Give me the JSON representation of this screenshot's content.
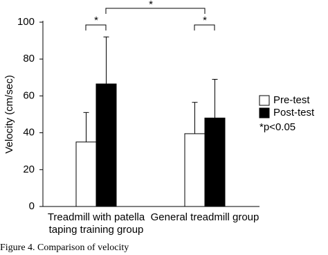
{
  "chart_data": {
    "type": "bar",
    "ylabel": "Velocity (cm/sec)",
    "categories": [
      "Treadmill with patella taping training group",
      "General treadmill group"
    ],
    "series": [
      {
        "name": "Pre-test",
        "color": "#ffffff",
        "values": [
          35,
          39.5
        ],
        "errors": [
          16,
          17
        ]
      },
      {
        "name": "Post-test",
        "color": "#000000",
        "values": [
          66.5,
          48
        ],
        "errors": [
          25.5,
          21
        ]
      }
    ],
    "ylim": [
      0,
      100
    ],
    "yticks": [
      0,
      20,
      40,
      60,
      80,
      100
    ],
    "annotations": [
      "*",
      "*",
      "*"
    ],
    "note": "*p<0.05",
    "caption": "Figure 4. Comparison of velocity"
  }
}
